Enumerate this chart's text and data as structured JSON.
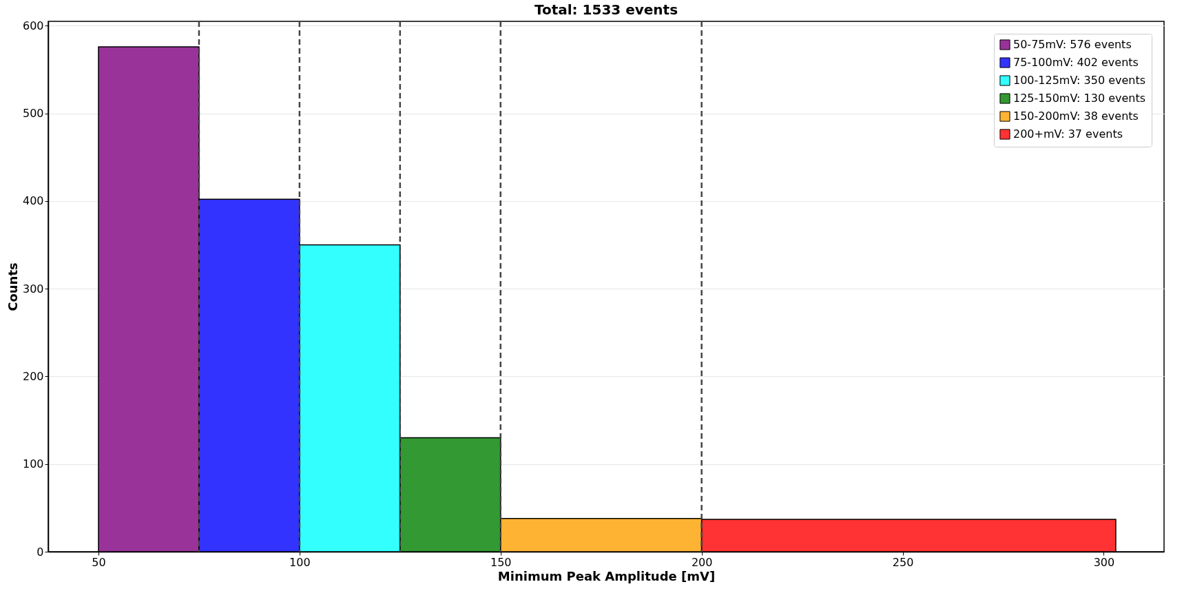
{
  "chart_data": {
    "type": "histogram",
    "title": "Total: 1533 events",
    "xlabel": "Minimum Peak Amplitude [mV]",
    "ylabel": "Counts",
    "bins": [
      50,
      75,
      100,
      125,
      150,
      200,
      303
    ],
    "series": [
      {
        "name": "50-75mV: 576 events",
        "color": "#993399",
        "values": [
          576,
          null,
          null,
          null,
          null,
          null
        ]
      },
      {
        "name": "75-100mV: 402 events",
        "color": "#3333ff",
        "values": [
          null,
          402,
          null,
          null,
          null,
          null
        ]
      },
      {
        "name": "100-125mV: 350 events",
        "color": "#33ffff",
        "values": [
          null,
          null,
          350,
          null,
          null,
          null
        ]
      },
      {
        "name": "125-150mV: 130 events",
        "color": "#339933",
        "values": [
          null,
          null,
          null,
          130,
          null,
          null
        ]
      },
      {
        "name": "150-200mV: 38 events",
        "color": "#ffb333",
        "values": [
          null,
          null,
          null,
          null,
          38,
          null
        ]
      },
      {
        "name": "200+mV: 37 events",
        "color": "#ff3333",
        "values": [
          null,
          null,
          null,
          null,
          null,
          37
        ]
      }
    ],
    "xlim": [
      37.5,
      315
    ],
    "xticks": [
      50,
      100,
      150,
      200,
      250,
      300
    ],
    "ylim": [
      0,
      605
    ],
    "yticks": [
      0,
      100,
      200,
      300,
      400,
      500,
      600
    ],
    "ref_lines": [
      {
        "axis": "x",
        "value": 75,
        "color": "#444444",
        "line_style": "dashed"
      },
      {
        "axis": "x",
        "value": 100,
        "color": "#444444",
        "line_style": "dashed"
      },
      {
        "axis": "x",
        "value": 125,
        "color": "#444444",
        "line_style": "dashed"
      },
      {
        "axis": "x",
        "value": 150,
        "color": "#444444",
        "line_style": "dashed"
      },
      {
        "axis": "x",
        "value": 200,
        "color": "#444444",
        "line_style": "dashed"
      }
    ],
    "grid": "y",
    "legend": "top right"
  }
}
